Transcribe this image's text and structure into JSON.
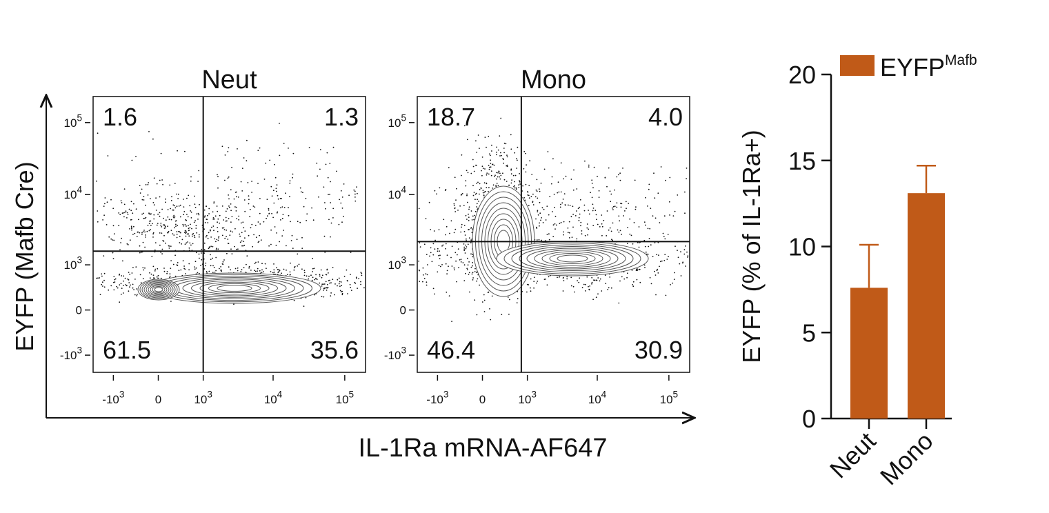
{
  "figure": {
    "xlabel": "IL-1Ra mRNA-AF647",
    "ylabel": "EYFP (Mafb Cre)"
  },
  "chart_data": [
    {
      "type": "flow",
      "title": "Neut",
      "xlim": [
        -2000,
        195000
      ],
      "ylim": [
        -1800,
        230000
      ],
      "xticks": [
        {
          "value": -1000,
          "label": "-10",
          "superscript": "3"
        },
        0,
        {
          "value": 1000,
          "label": "10",
          "superscript": "3"
        },
        {
          "value": 10000,
          "label": "10",
          "superscript": "4"
        },
        {
          "value": 100000,
          "label": "10",
          "superscript": "5"
        }
      ],
      "yticks": [
        {
          "value": -1000,
          "label": "-10",
          "superscript": "3"
        },
        0,
        {
          "value": 1000,
          "label": "10",
          "superscript": "3"
        },
        {
          "value": 10000,
          "label": "10",
          "superscript": "4"
        },
        {
          "value": 100000,
          "label": "10",
          "superscript": "5"
        }
      ],
      "quadrant_gate": [
        1000,
        1600
      ],
      "quadrants": {
        "order": [
          "upper-left",
          "upper-right",
          "lower-left",
          "lower-right"
        ],
        "values": [
          1.6,
          1.3,
          61.5,
          35.6
        ]
      }
    },
    {
      "type": "flow",
      "title": "Mono",
      "xlim": [
        -2000,
        195000
      ],
      "ylim": [
        -1800,
        230000
      ],
      "xticks": [
        {
          "value": -1000,
          "label": "-10",
          "superscript": "3"
        },
        0,
        {
          "value": 1000,
          "label": "10",
          "superscript": "3"
        },
        {
          "value": 10000,
          "label": "10",
          "superscript": "4"
        },
        {
          "value": 100000,
          "label": "10",
          "superscript": "5"
        }
      ],
      "yticks": [
        {
          "value": -1000,
          "label": "-10",
          "superscript": "3"
        },
        0,
        {
          "value": 1000,
          "label": "10",
          "superscript": "3"
        },
        {
          "value": 10000,
          "label": "10",
          "superscript": "4"
        },
        {
          "value": 100000,
          "label": "10",
          "superscript": "5"
        }
      ],
      "quadrant_gate": [
        800,
        2200
      ],
      "quadrants": {
        "order": [
          "upper-left",
          "upper-right",
          "lower-left",
          "lower-right"
        ],
        "values": [
          18.7,
          4,
          46.4,
          30.9
        ],
        "value_labels": [
          "18.7",
          "4.0",
          "46.4",
          "30.9"
        ]
      }
    },
    {
      "type": "bar",
      "ylabel": "EYFP (% of IL-1Ra+)",
      "categories": [
        "Neut",
        "Mono"
      ],
      "series": [
        {
          "name": "EYFP",
          "name_superscript": "Mafb",
          "color": "#c05a18",
          "values": [
            7.6,
            13.1
          ],
          "errors": [
            2.5,
            1.6
          ]
        }
      ],
      "ylim": [
        0,
        20
      ],
      "yticks": [
        0,
        5,
        10,
        15,
        20
      ]
    }
  ]
}
